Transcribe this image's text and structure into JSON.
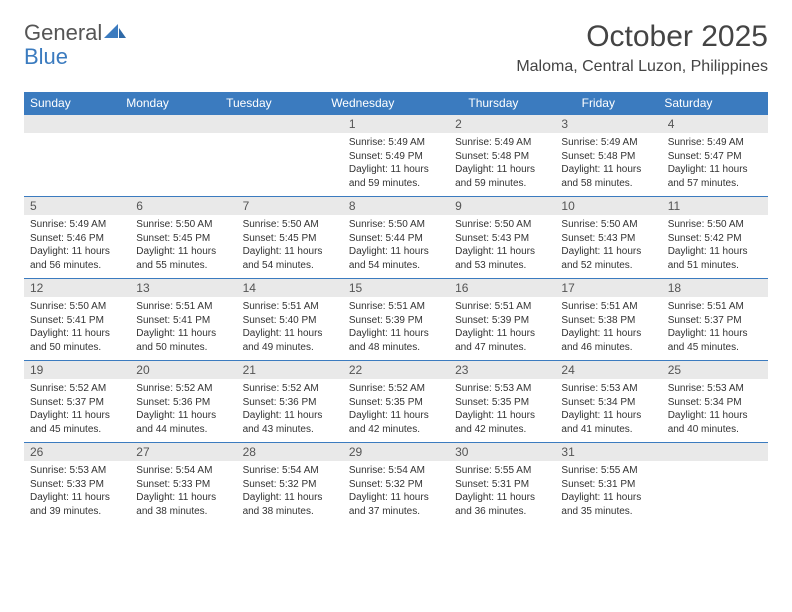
{
  "logo": {
    "part1": "General",
    "part2": "Blue"
  },
  "title": "October 2025",
  "location": "Maloma, Central Luzon, Philippines",
  "colors": {
    "header_bg": "#3b7bbf",
    "header_text": "#ffffff",
    "daynum_bg": "#e9e9e9",
    "text": "#333333",
    "border": "#3b7bbf",
    "background": "#ffffff"
  },
  "typography": {
    "title_fontsize": 30,
    "location_fontsize": 16,
    "dayheader_fontsize": 12,
    "daynum_fontsize": 12,
    "body_fontsize": 10
  },
  "day_headers": [
    "Sunday",
    "Monday",
    "Tuesday",
    "Wednesday",
    "Thursday",
    "Friday",
    "Saturday"
  ],
  "weeks": [
    [
      {
        "n": "",
        "sunrise": "",
        "sunset": "",
        "daylight": ""
      },
      {
        "n": "",
        "sunrise": "",
        "sunset": "",
        "daylight": ""
      },
      {
        "n": "",
        "sunrise": "",
        "sunset": "",
        "daylight": ""
      },
      {
        "n": "1",
        "sunrise": "Sunrise: 5:49 AM",
        "sunset": "Sunset: 5:49 PM",
        "daylight": "Daylight: 11 hours and 59 minutes."
      },
      {
        "n": "2",
        "sunrise": "Sunrise: 5:49 AM",
        "sunset": "Sunset: 5:48 PM",
        "daylight": "Daylight: 11 hours and 59 minutes."
      },
      {
        "n": "3",
        "sunrise": "Sunrise: 5:49 AM",
        "sunset": "Sunset: 5:48 PM",
        "daylight": "Daylight: 11 hours and 58 minutes."
      },
      {
        "n": "4",
        "sunrise": "Sunrise: 5:49 AM",
        "sunset": "Sunset: 5:47 PM",
        "daylight": "Daylight: 11 hours and 57 minutes."
      }
    ],
    [
      {
        "n": "5",
        "sunrise": "Sunrise: 5:49 AM",
        "sunset": "Sunset: 5:46 PM",
        "daylight": "Daylight: 11 hours and 56 minutes."
      },
      {
        "n": "6",
        "sunrise": "Sunrise: 5:50 AM",
        "sunset": "Sunset: 5:45 PM",
        "daylight": "Daylight: 11 hours and 55 minutes."
      },
      {
        "n": "7",
        "sunrise": "Sunrise: 5:50 AM",
        "sunset": "Sunset: 5:45 PM",
        "daylight": "Daylight: 11 hours and 54 minutes."
      },
      {
        "n": "8",
        "sunrise": "Sunrise: 5:50 AM",
        "sunset": "Sunset: 5:44 PM",
        "daylight": "Daylight: 11 hours and 54 minutes."
      },
      {
        "n": "9",
        "sunrise": "Sunrise: 5:50 AM",
        "sunset": "Sunset: 5:43 PM",
        "daylight": "Daylight: 11 hours and 53 minutes."
      },
      {
        "n": "10",
        "sunrise": "Sunrise: 5:50 AM",
        "sunset": "Sunset: 5:43 PM",
        "daylight": "Daylight: 11 hours and 52 minutes."
      },
      {
        "n": "11",
        "sunrise": "Sunrise: 5:50 AM",
        "sunset": "Sunset: 5:42 PM",
        "daylight": "Daylight: 11 hours and 51 minutes."
      }
    ],
    [
      {
        "n": "12",
        "sunrise": "Sunrise: 5:50 AM",
        "sunset": "Sunset: 5:41 PM",
        "daylight": "Daylight: 11 hours and 50 minutes."
      },
      {
        "n": "13",
        "sunrise": "Sunrise: 5:51 AM",
        "sunset": "Sunset: 5:41 PM",
        "daylight": "Daylight: 11 hours and 50 minutes."
      },
      {
        "n": "14",
        "sunrise": "Sunrise: 5:51 AM",
        "sunset": "Sunset: 5:40 PM",
        "daylight": "Daylight: 11 hours and 49 minutes."
      },
      {
        "n": "15",
        "sunrise": "Sunrise: 5:51 AM",
        "sunset": "Sunset: 5:39 PM",
        "daylight": "Daylight: 11 hours and 48 minutes."
      },
      {
        "n": "16",
        "sunrise": "Sunrise: 5:51 AM",
        "sunset": "Sunset: 5:39 PM",
        "daylight": "Daylight: 11 hours and 47 minutes."
      },
      {
        "n": "17",
        "sunrise": "Sunrise: 5:51 AM",
        "sunset": "Sunset: 5:38 PM",
        "daylight": "Daylight: 11 hours and 46 minutes."
      },
      {
        "n": "18",
        "sunrise": "Sunrise: 5:51 AM",
        "sunset": "Sunset: 5:37 PM",
        "daylight": "Daylight: 11 hours and 45 minutes."
      }
    ],
    [
      {
        "n": "19",
        "sunrise": "Sunrise: 5:52 AM",
        "sunset": "Sunset: 5:37 PM",
        "daylight": "Daylight: 11 hours and 45 minutes."
      },
      {
        "n": "20",
        "sunrise": "Sunrise: 5:52 AM",
        "sunset": "Sunset: 5:36 PM",
        "daylight": "Daylight: 11 hours and 44 minutes."
      },
      {
        "n": "21",
        "sunrise": "Sunrise: 5:52 AM",
        "sunset": "Sunset: 5:36 PM",
        "daylight": "Daylight: 11 hours and 43 minutes."
      },
      {
        "n": "22",
        "sunrise": "Sunrise: 5:52 AM",
        "sunset": "Sunset: 5:35 PM",
        "daylight": "Daylight: 11 hours and 42 minutes."
      },
      {
        "n": "23",
        "sunrise": "Sunrise: 5:53 AM",
        "sunset": "Sunset: 5:35 PM",
        "daylight": "Daylight: 11 hours and 42 minutes."
      },
      {
        "n": "24",
        "sunrise": "Sunrise: 5:53 AM",
        "sunset": "Sunset: 5:34 PM",
        "daylight": "Daylight: 11 hours and 41 minutes."
      },
      {
        "n": "25",
        "sunrise": "Sunrise: 5:53 AM",
        "sunset": "Sunset: 5:34 PM",
        "daylight": "Daylight: 11 hours and 40 minutes."
      }
    ],
    [
      {
        "n": "26",
        "sunrise": "Sunrise: 5:53 AM",
        "sunset": "Sunset: 5:33 PM",
        "daylight": "Daylight: 11 hours and 39 minutes."
      },
      {
        "n": "27",
        "sunrise": "Sunrise: 5:54 AM",
        "sunset": "Sunset: 5:33 PM",
        "daylight": "Daylight: 11 hours and 38 minutes."
      },
      {
        "n": "28",
        "sunrise": "Sunrise: 5:54 AM",
        "sunset": "Sunset: 5:32 PM",
        "daylight": "Daylight: 11 hours and 38 minutes."
      },
      {
        "n": "29",
        "sunrise": "Sunrise: 5:54 AM",
        "sunset": "Sunset: 5:32 PM",
        "daylight": "Daylight: 11 hours and 37 minutes."
      },
      {
        "n": "30",
        "sunrise": "Sunrise: 5:55 AM",
        "sunset": "Sunset: 5:31 PM",
        "daylight": "Daylight: 11 hours and 36 minutes."
      },
      {
        "n": "31",
        "sunrise": "Sunrise: 5:55 AM",
        "sunset": "Sunset: 5:31 PM",
        "daylight": "Daylight: 11 hours and 35 minutes."
      },
      {
        "n": "",
        "sunrise": "",
        "sunset": "",
        "daylight": ""
      }
    ]
  ]
}
